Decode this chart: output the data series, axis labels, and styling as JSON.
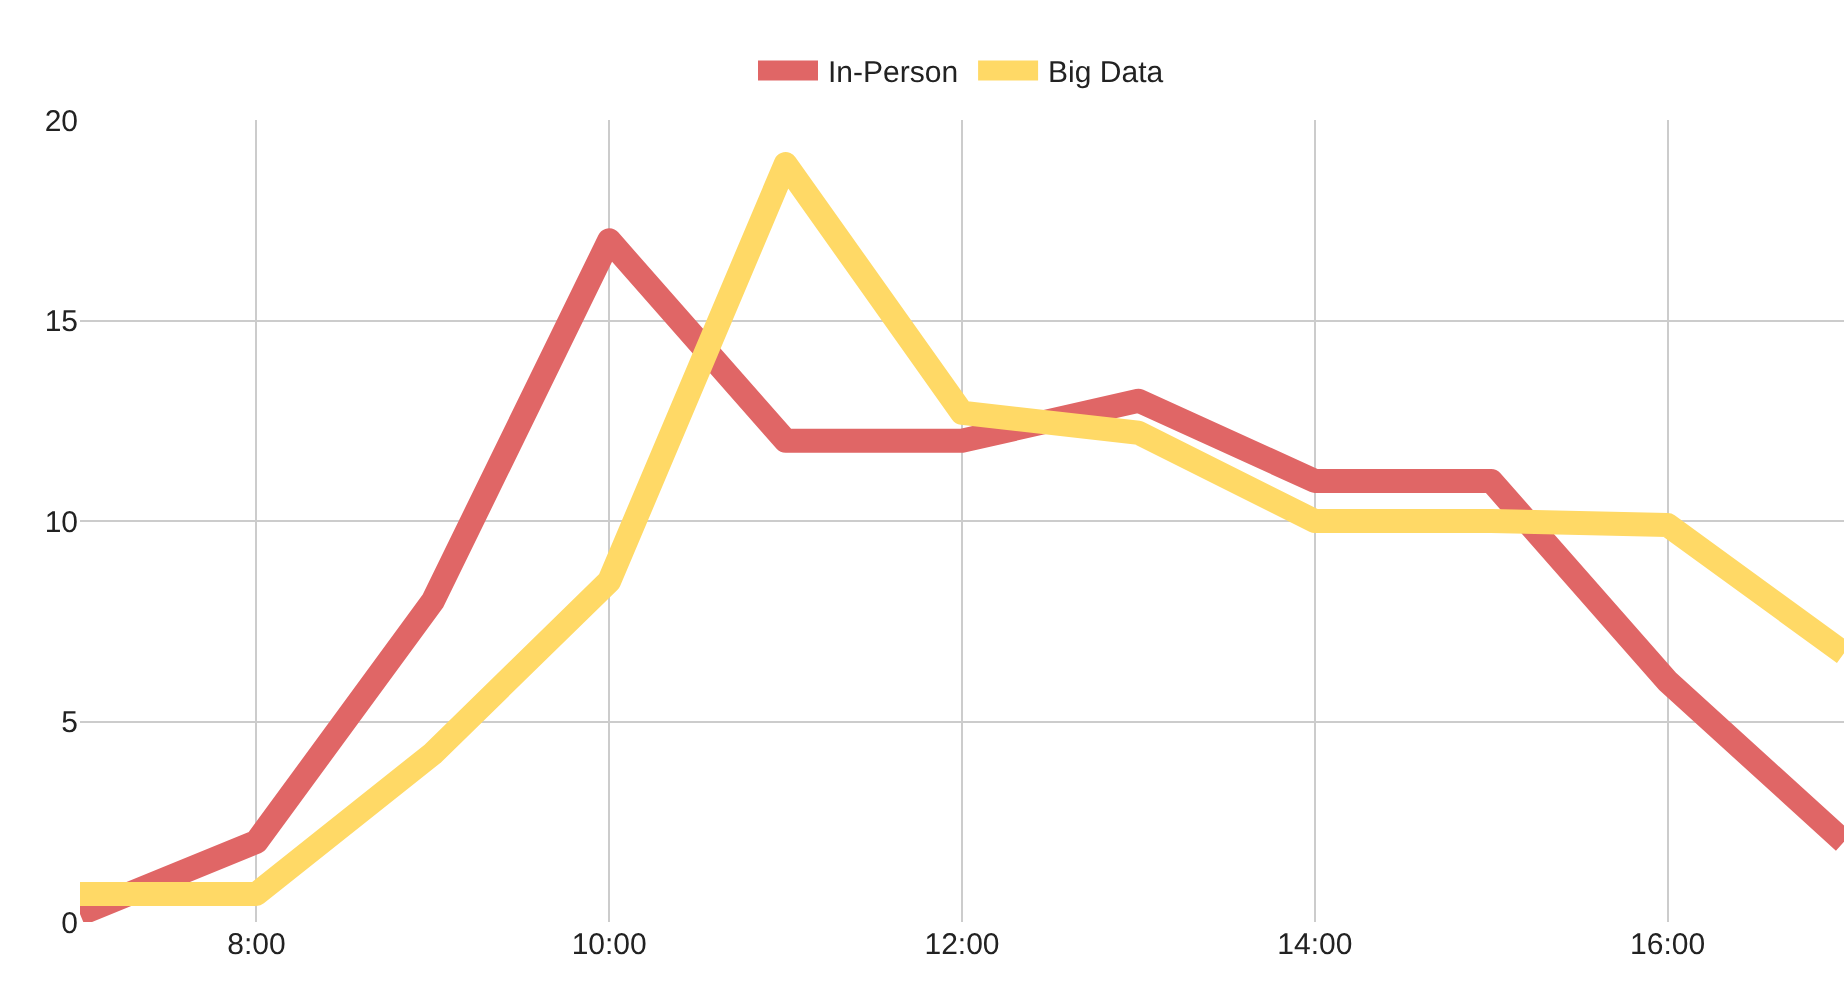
{
  "chart_data": {
    "type": "line",
    "x": [
      7,
      8,
      9,
      10,
      11,
      12,
      13,
      14,
      15,
      16,
      17
    ],
    "series": [
      {
        "name": "In-Person",
        "color": "#e06666",
        "values": [
          0.2,
          2,
          8,
          17,
          12,
          12,
          13,
          11,
          11,
          6,
          2
        ]
      },
      {
        "name": "Big Data",
        "color": "#ffd966",
        "values": [
          0.7,
          0.7,
          4.2,
          8.5,
          18.9,
          12.7,
          12.2,
          10,
          10,
          9.9,
          6.7
        ]
      }
    ],
    "xlim": [
      7,
      17
    ],
    "xticks": [
      {
        "value": 8,
        "label": "8:00"
      },
      {
        "value": 10,
        "label": "10:00"
      },
      {
        "value": 12,
        "label": "12:00"
      },
      {
        "value": 14,
        "label": "14:00"
      },
      {
        "value": 16,
        "label": "16:00"
      }
    ],
    "ylim": [
      0,
      20
    ],
    "yticks": [
      0,
      5,
      10,
      15,
      20
    ],
    "grid": true,
    "legend": "top",
    "line_style": "solid"
  }
}
